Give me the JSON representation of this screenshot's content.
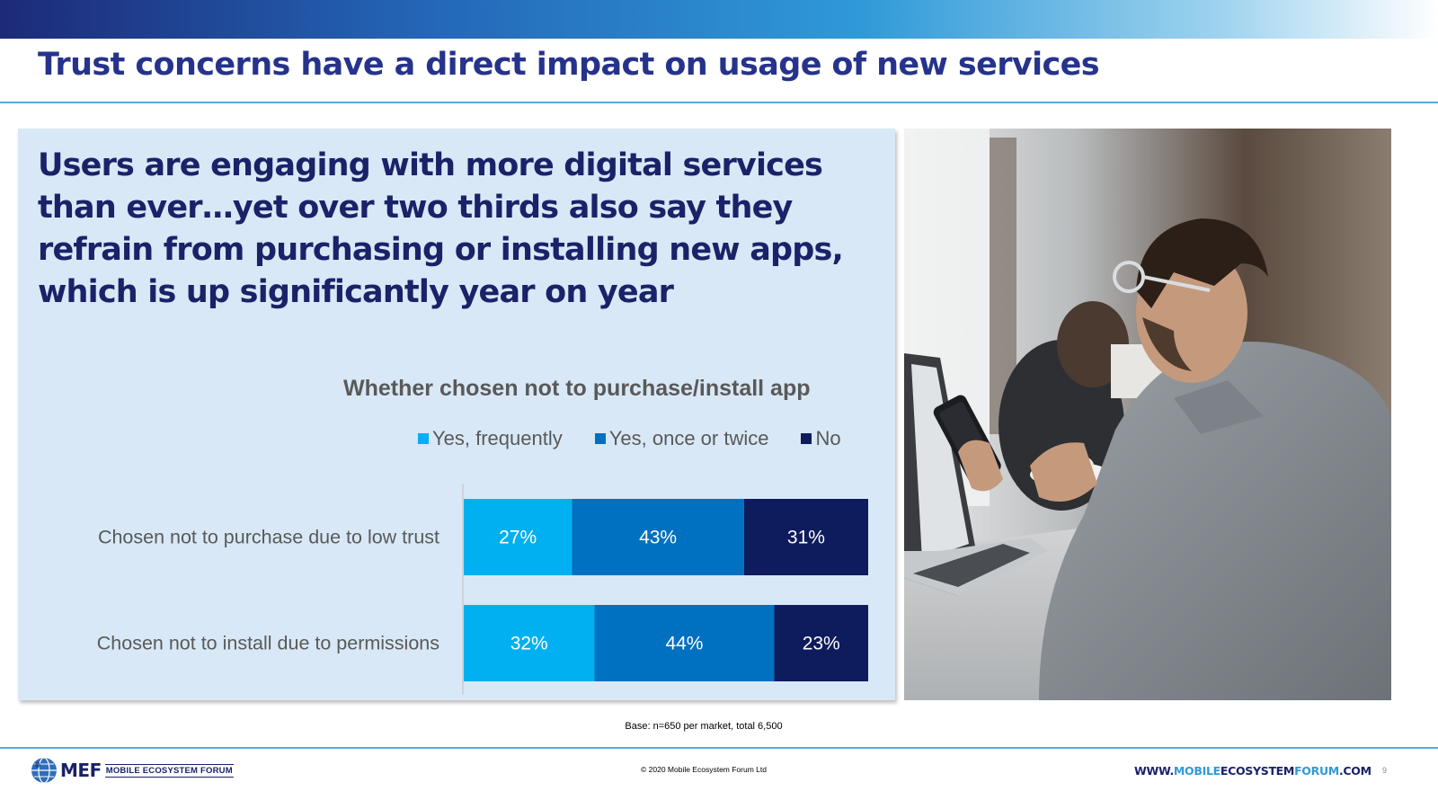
{
  "slide": {
    "title": "Trust concerns have a direct impact on usage of new services",
    "headline": "Users are engaging with more digital services than ever…yet over two thirds also say they refrain from purchasing or installing new apps, which is up significantly year on year",
    "base_note": "Base: n=650 per market, total 6,500",
    "copyright": "© 2020 Mobile Ecosystem Forum Ltd",
    "website": {
      "prefix": "WWW.",
      "part1": "MOBILE",
      "part2": "ECOSYSTEM",
      "part3": "FORUM",
      "suffix": ".COM"
    },
    "page_number": "9",
    "logo": {
      "text": "MEF",
      "subtext": "MOBILE ECOSYSTEM FORUM"
    }
  },
  "colors": {
    "title": "#26338c",
    "headline": "#1a2268",
    "panel": "#d8e8f6",
    "accent": "#5aa9d9"
  },
  "chart_data": {
    "type": "bar",
    "orientation": "horizontal",
    "stacked": true,
    "title": "Whether chosen not to purchase/install app",
    "categories": [
      "Chosen not to purchase due to low trust",
      "Chosen not to install due to permissions"
    ],
    "series": [
      {
        "name": "Yes, frequently",
        "color": "#00b0f0",
        "values": [
          27,
          32
        ]
      },
      {
        "name": "Yes, once or twice",
        "color": "#0070c0",
        "values": [
          43,
          44
        ]
      },
      {
        "name": "No",
        "color": "#0e1b5c",
        "values": [
          31,
          23
        ]
      }
    ],
    "value_suffix": "%",
    "legend_position": "top",
    "grid": false
  }
}
